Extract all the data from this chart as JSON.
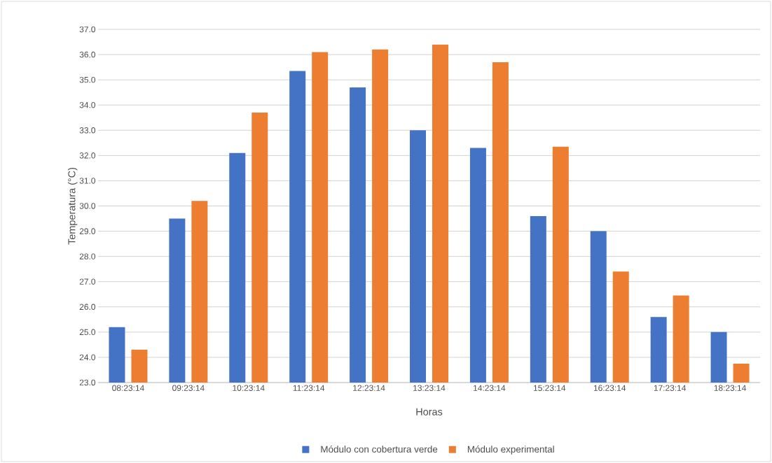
{
  "chart_data": {
    "type": "bar",
    "xlabel": "Horas",
    "ylabel": "Temperatura (°C)",
    "categories": [
      "08:23:14",
      "09:23:14",
      "10:23:14",
      "11:23:14",
      "12:23:14",
      "13:23:14",
      "14:23:14",
      "15:23:14",
      "16:23:14",
      "17:23:14",
      "18:23:14"
    ],
    "series": [
      {
        "name": "Módulo con cobertura verde",
        "color": "#4472c4",
        "values": [
          25.2,
          29.5,
          32.1,
          35.35,
          34.7,
          33.0,
          32.3,
          29.6,
          29.0,
          25.6,
          25.0
        ]
      },
      {
        "name": "Módulo experimental",
        "color": "#ed7d31",
        "values": [
          24.3,
          30.2,
          33.7,
          36.1,
          36.2,
          36.4,
          35.7,
          32.35,
          27.4,
          26.45,
          23.75
        ]
      }
    ],
    "ylim": [
      23,
      37
    ],
    "yticks": [
      {
        "value": 23,
        "label": "23.0"
      },
      {
        "value": 24,
        "label": "24.0"
      },
      {
        "value": 25,
        "label": "25.0"
      },
      {
        "value": 26,
        "label": "26.0"
      },
      {
        "value": 27,
        "label": "27.0"
      },
      {
        "value": 28,
        "label": "28.0"
      },
      {
        "value": 29,
        "label": "29.0"
      },
      {
        "value": 30,
        "label": "30.0"
      },
      {
        "value": 31,
        "label": "31.0"
      },
      {
        "value": 32,
        "label": "32.0"
      },
      {
        "value": 33,
        "label": "33.0"
      },
      {
        "value": 34,
        "label": "34.0"
      },
      {
        "value": 35,
        "label": "35.0"
      },
      {
        "value": 36,
        "label": "36.0"
      },
      {
        "value": 37,
        "label": "37.0"
      }
    ],
    "grid": "y",
    "legend": "bottom"
  }
}
